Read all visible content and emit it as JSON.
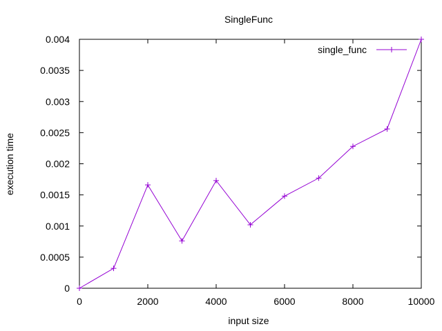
{
  "chart_data": {
    "type": "line",
    "title": "SingleFunc",
    "xlabel": "input size",
    "ylabel": "execution time",
    "xlim": [
      0,
      10000
    ],
    "ylim": [
      0,
      0.004
    ],
    "x_ticks": [
      0,
      2000,
      4000,
      6000,
      8000,
      10000
    ],
    "x_tick_labels": [
      "0",
      "2000",
      "4000",
      "6000",
      "8000",
      "10000"
    ],
    "y_ticks": [
      0,
      0.0005,
      0.001,
      0.0015,
      0.002,
      0.0025,
      0.003,
      0.0035,
      0.004
    ],
    "y_tick_labels": [
      "0",
      "0.0005",
      "0.001",
      "0.0015",
      "0.002",
      "0.0025",
      "0.003",
      "0.0035",
      "0.004"
    ],
    "grid": false,
    "legend_position": "top-right",
    "series": [
      {
        "name": "single_func",
        "color": "#9400d3",
        "marker": "plus",
        "x": [
          0,
          1000,
          2000,
          3000,
          4000,
          5000,
          6000,
          7000,
          8000,
          9000,
          10000
        ],
        "y": [
          0.0,
          0.00032,
          0.00166,
          0.00076,
          0.00173,
          0.00102,
          0.00148,
          0.00177,
          0.00228,
          0.00256,
          0.004
        ]
      }
    ]
  }
}
